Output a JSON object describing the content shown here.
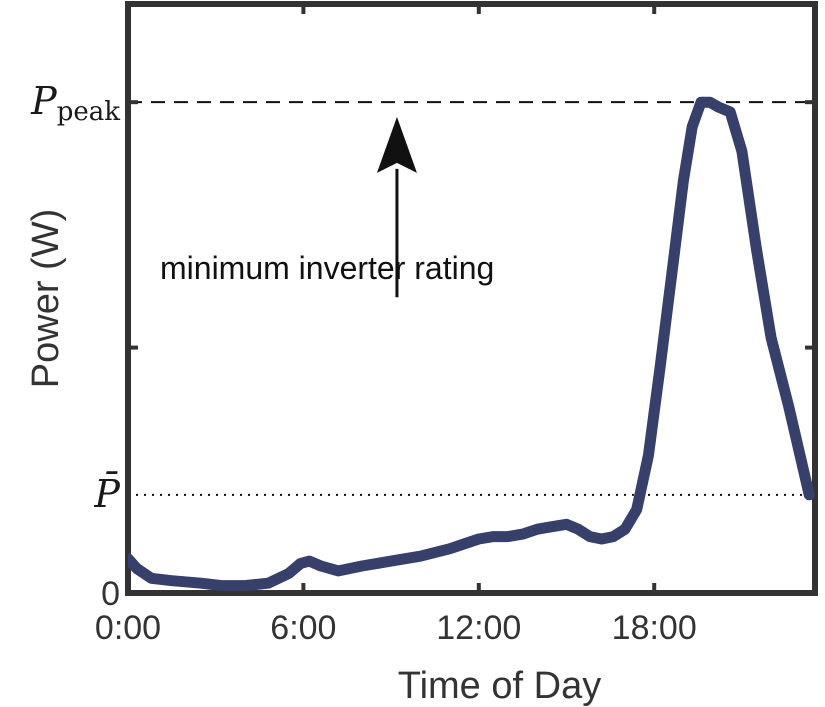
{
  "chart_data": {
    "type": "line",
    "xlabel": "Time of Day",
    "ylabel": "Power (W)",
    "xlim": [
      0,
      23.5
    ],
    "ylim": [
      0,
      1.2
    ],
    "x_ticks": [
      0,
      6,
      12,
      18
    ],
    "x_tick_labels": [
      "0:00",
      "6:00",
      "12:00",
      "18:00"
    ],
    "y_ticks": [
      0,
      0.5,
      1.0
    ],
    "y_tick_labels": [
      "0",
      "",
      ""
    ],
    "reference_lines": [
      {
        "label": "P",
        "subscript": "peak",
        "value": 1.0,
        "style": "dashed"
      },
      {
        "label": "P̄",
        "subscript": "",
        "value": 0.2,
        "style": "dotted"
      }
    ],
    "annotation": {
      "text": "minimum inverter rating",
      "x": 9.2,
      "y": 0.68,
      "arrow_to_y": 0.97
    },
    "line_color": "#36406a",
    "series": [
      {
        "x": [
          0,
          0.3,
          0.8,
          1.5,
          2.5,
          3.2,
          4.0,
          4.8,
          5.5,
          5.9,
          6.2,
          6.6,
          7.2,
          8.0,
          9.0,
          10.0,
          11.0,
          11.5,
          12.0,
          12.5,
          13.0,
          13.5,
          14.0,
          14.5,
          15.0,
          15.4,
          15.8,
          16.2,
          16.6,
          17.0,
          17.4,
          17.8,
          18.2,
          18.6,
          19.0,
          19.3,
          19.6,
          19.9,
          20.2,
          20.6,
          21.0,
          21.5,
          22.0,
          22.6,
          23.3
        ],
        "y": [
          0.07,
          0.05,
          0.03,
          0.025,
          0.02,
          0.015,
          0.015,
          0.02,
          0.04,
          0.06,
          0.065,
          0.055,
          0.045,
          0.055,
          0.065,
          0.075,
          0.09,
          0.1,
          0.11,
          0.115,
          0.115,
          0.12,
          0.13,
          0.135,
          0.14,
          0.13,
          0.115,
          0.11,
          0.115,
          0.13,
          0.17,
          0.28,
          0.46,
          0.65,
          0.84,
          0.95,
          1.0,
          1.0,
          0.99,
          0.98,
          0.9,
          0.7,
          0.52,
          0.38,
          0.2
        ]
      }
    ]
  }
}
